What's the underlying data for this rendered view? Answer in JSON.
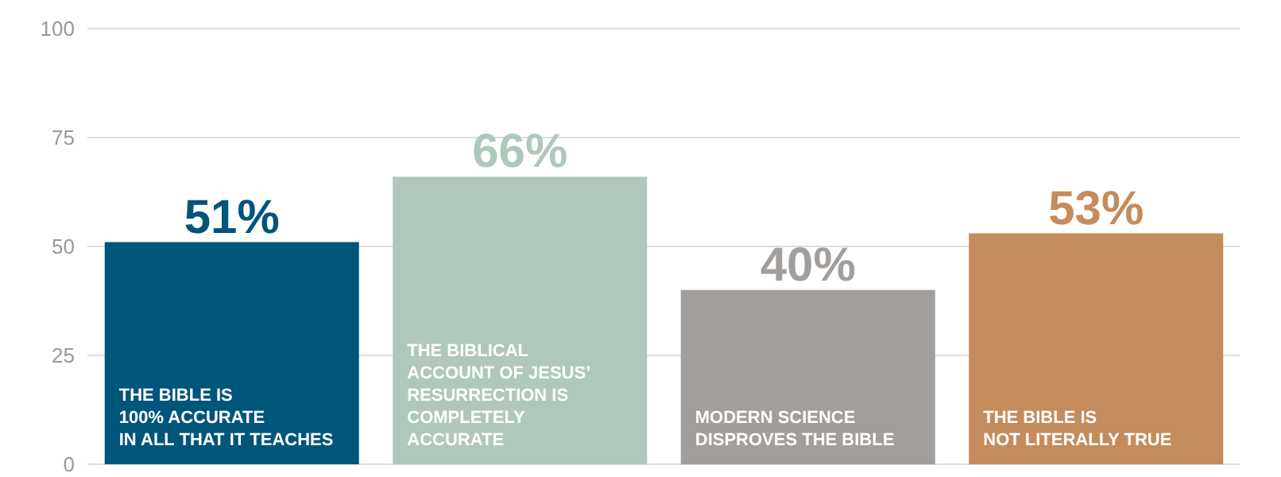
{
  "chart_data": {
    "type": "bar",
    "categories": [
      "THE BIBLE IS\n100% ACCURATE\nIN ALL THAT IT TEACHES",
      "THE BIBLICAL\nACCOUNT OF JESUS’\nRESURRECTION IS\nCOMPLETELY\nACCURATE",
      "MODERN SCIENCE\nDISPROVES THE BIBLE",
      "THE BIBLE IS\nNOT LITERALLY TRUE"
    ],
    "values": [
      51,
      66,
      40,
      53
    ],
    "colors": [
      "#00557a",
      "#b0c8bb",
      "#a29e9b",
      "#c48c5d"
    ],
    "value_labels": [
      "51%",
      "66%",
      "40%",
      "53%"
    ],
    "ylim": [
      0,
      100
    ],
    "yticks": [
      0,
      25,
      50,
      75,
      100
    ],
    "grid": "y"
  }
}
